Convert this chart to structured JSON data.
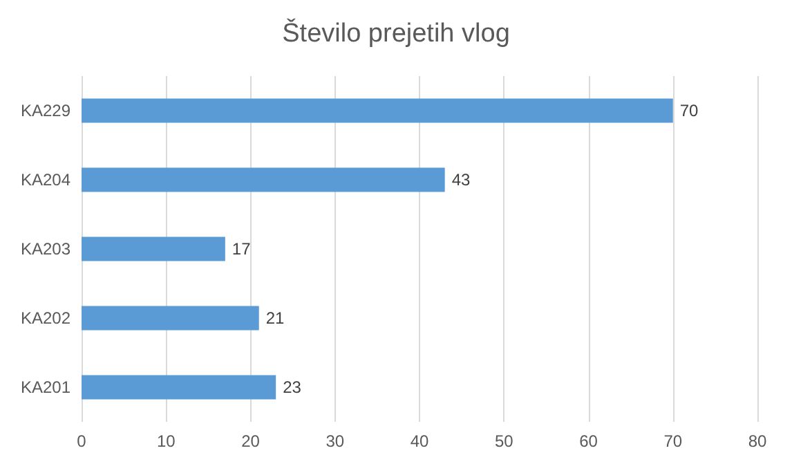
{
  "chart_data": {
    "type": "bar",
    "title": "Število prejetih vlog",
    "orientation": "horizontal",
    "categories": [
      "KA229",
      "KA204",
      "KA203",
      "KA202",
      "KA201"
    ],
    "values": [
      70,
      43,
      17,
      21,
      23
    ],
    "color": "#5b9bd5",
    "xlim": [
      0,
      80
    ],
    "xticks": [
      0,
      10,
      20,
      30,
      40,
      50,
      60,
      70,
      80
    ],
    "grid": "x",
    "data_labels": true
  }
}
